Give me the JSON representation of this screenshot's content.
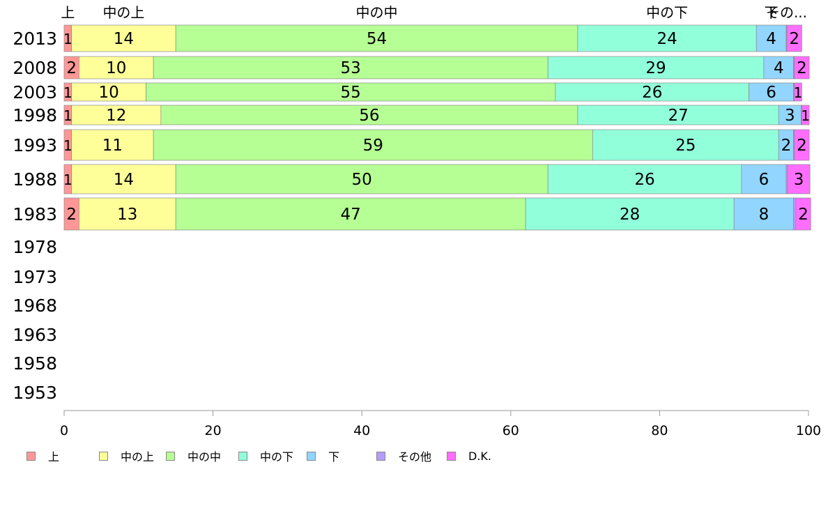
{
  "chart_data": {
    "type": "bar",
    "orientation": "horizontal",
    "stacked": true,
    "categories": [
      "2013",
      "2008",
      "2003",
      "1998",
      "1993",
      "1988",
      "1983",
      "1978",
      "1973",
      "1968",
      "1963",
      "1958",
      "1953"
    ],
    "series": [
      {
        "name": "上",
        "color": "#FF9797",
        "values": [
          1,
          2,
          1,
          1,
          1,
          1,
          2,
          null,
          null,
          null,
          null,
          null,
          null
        ]
      },
      {
        "name": "中の上",
        "color": "#FFFF99",
        "values": [
          14,
          10,
          10,
          12,
          11,
          14,
          13,
          null,
          null,
          null,
          null,
          null,
          null
        ]
      },
      {
        "name": "中の中",
        "color": "#B6FF94",
        "values": [
          54,
          53,
          55,
          56,
          59,
          50,
          47,
          null,
          null,
          null,
          null,
          null,
          null
        ]
      },
      {
        "name": "中の下",
        "color": "#92FFDB",
        "values": [
          24,
          29,
          26,
          27,
          25,
          26,
          28,
          null,
          null,
          null,
          null,
          null,
          null
        ]
      },
      {
        "name": "下",
        "color": "#92D5FF",
        "values": [
          4,
          4,
          6,
          3,
          2,
          6,
          8,
          null,
          null,
          null,
          null,
          null,
          null
        ]
      },
      {
        "name": "その他",
        "color": "#B69BFF",
        "values": [
          0.1,
          0.1,
          0.1,
          0.1,
          0.1,
          0.2,
          0.3,
          null,
          null,
          null,
          null,
          null,
          null
        ]
      },
      {
        "name": "D.K.",
        "color": "#FF6EFF",
        "values": [
          2,
          2,
          1,
          1,
          2,
          3,
          2,
          null,
          null,
          null,
          null,
          null,
          null
        ]
      }
    ],
    "top_labels": [
      "上",
      "中の上",
      "中の中",
      "中の下",
      "下",
      "その..."
    ],
    "xlim": [
      0,
      100
    ],
    "xticks": [
      "0",
      "20",
      "40",
      "60",
      "80",
      "100"
    ],
    "grid": false,
    "legend_position": "bottom"
  }
}
